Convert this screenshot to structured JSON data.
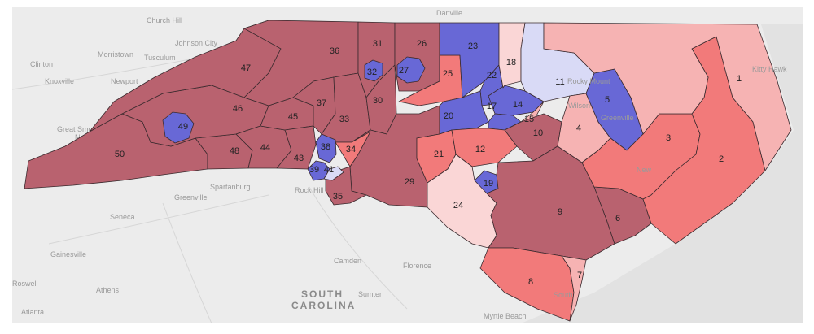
{
  "colors": {
    "dark_red": "#b9626f",
    "red": "#f27a7a",
    "light_red": "#f6b3b3",
    "pale_red": "#fad6d6",
    "dark_blue": "#6868d6",
    "pale_blue": "#d9daf6",
    "land": "#ececec",
    "water": "#e4e4e4"
  },
  "background_labels": {
    "church_hill": "Church Hill",
    "danville": "Danville",
    "johnson_city": "Johnson City",
    "morristown": "Morristown",
    "tusculum": "Tusculum",
    "clinton": "Clinton",
    "knoxville": "Knoxville",
    "newport": "Newport",
    "gsmnp": "Great Smoky Mountains",
    "gsmnp2": "National Park",
    "spartanburg": "Spartanburg",
    "greenville_sc": "Greenville",
    "rock_hill": "Rock Hill",
    "seneca": "Seneca",
    "gainesville": "Gainesville",
    "roswell": "Roswell",
    "athens": "Athens",
    "atlanta": "Atlanta",
    "camden": "Camden",
    "florence": "Florence",
    "sumter": "Sumter",
    "south": "SOUTH",
    "carolina": "CAROLINA",
    "myrtle_beach": "Myrtle Beach",
    "kitty_hawk": "Kitty Hawk",
    "rocky_mount": "Rocky Mount",
    "wilson": "Wilson",
    "greenville_nc": "Greenville",
    "new_bern": "New",
    "southport": "South"
  },
  "districts": [
    {
      "id": "1",
      "label": "1",
      "lean": "light_red"
    },
    {
      "id": "2",
      "label": "2",
      "lean": "red"
    },
    {
      "id": "3",
      "label": "3",
      "lean": "red"
    },
    {
      "id": "4",
      "label": "4",
      "lean": "light_red"
    },
    {
      "id": "5",
      "label": "5",
      "lean": "dark_blue"
    },
    {
      "id": "6",
      "label": "6",
      "lean": "dark_red"
    },
    {
      "id": "7",
      "label": "7",
      "lean": "light_red"
    },
    {
      "id": "8",
      "label": "8",
      "lean": "red"
    },
    {
      "id": "9",
      "label": "9",
      "lean": "dark_red"
    },
    {
      "id": "10",
      "label": "10",
      "lean": "dark_red"
    },
    {
      "id": "11",
      "label": "11",
      "lean": "pale_blue"
    },
    {
      "id": "12",
      "label": "12",
      "lean": "red"
    },
    {
      "id": "14",
      "label": "14",
      "lean": "dark_blue"
    },
    {
      "id": "15",
      "label": "15",
      "lean": "light_red"
    },
    {
      "id": "17",
      "label": "17",
      "lean": "dark_blue"
    },
    {
      "id": "18",
      "label": "18",
      "lean": "pale_red"
    },
    {
      "id": "19",
      "label": "19",
      "lean": "dark_blue"
    },
    {
      "id": "20",
      "label": "20",
      "lean": "dark_blue"
    },
    {
      "id": "21",
      "label": "21",
      "lean": "red"
    },
    {
      "id": "22",
      "label": "22",
      "lean": "dark_blue"
    },
    {
      "id": "23",
      "label": "23",
      "lean": "dark_blue"
    },
    {
      "id": "24",
      "label": "24",
      "lean": "pale_red"
    },
    {
      "id": "25",
      "label": "25",
      "lean": "red"
    },
    {
      "id": "26",
      "label": "26",
      "lean": "dark_red"
    },
    {
      "id": "27",
      "label": "27",
      "lean": "dark_blue"
    },
    {
      "id": "29",
      "label": "29",
      "lean": "dark_red"
    },
    {
      "id": "30",
      "label": "30",
      "lean": "dark_red"
    },
    {
      "id": "31",
      "label": "31",
      "lean": "dark_red"
    },
    {
      "id": "32",
      "label": "32",
      "lean": "dark_blue"
    },
    {
      "id": "33",
      "label": "33",
      "lean": "dark_red"
    },
    {
      "id": "34",
      "label": "34",
      "lean": "red"
    },
    {
      "id": "35",
      "label": "35",
      "lean": "dark_red"
    },
    {
      "id": "36",
      "label": "36",
      "lean": "dark_red"
    },
    {
      "id": "37",
      "label": "37",
      "lean": "dark_red"
    },
    {
      "id": "38",
      "label": "38",
      "lean": "dark_blue"
    },
    {
      "id": "39",
      "label": "39",
      "lean": "dark_blue"
    },
    {
      "id": "41",
      "label": "41",
      "lean": "pale_blue"
    },
    {
      "id": "43",
      "label": "43",
      "lean": "dark_red"
    },
    {
      "id": "44",
      "label": "44",
      "lean": "dark_red"
    },
    {
      "id": "45",
      "label": "45",
      "lean": "dark_red"
    },
    {
      "id": "46",
      "label": "46",
      "lean": "dark_red"
    },
    {
      "id": "47",
      "label": "47",
      "lean": "dark_red"
    },
    {
      "id": "48",
      "label": "48",
      "lean": "dark_red"
    },
    {
      "id": "49",
      "label": "49",
      "lean": "dark_blue"
    },
    {
      "id": "50",
      "label": "50",
      "lean": "dark_red"
    }
  ]
}
